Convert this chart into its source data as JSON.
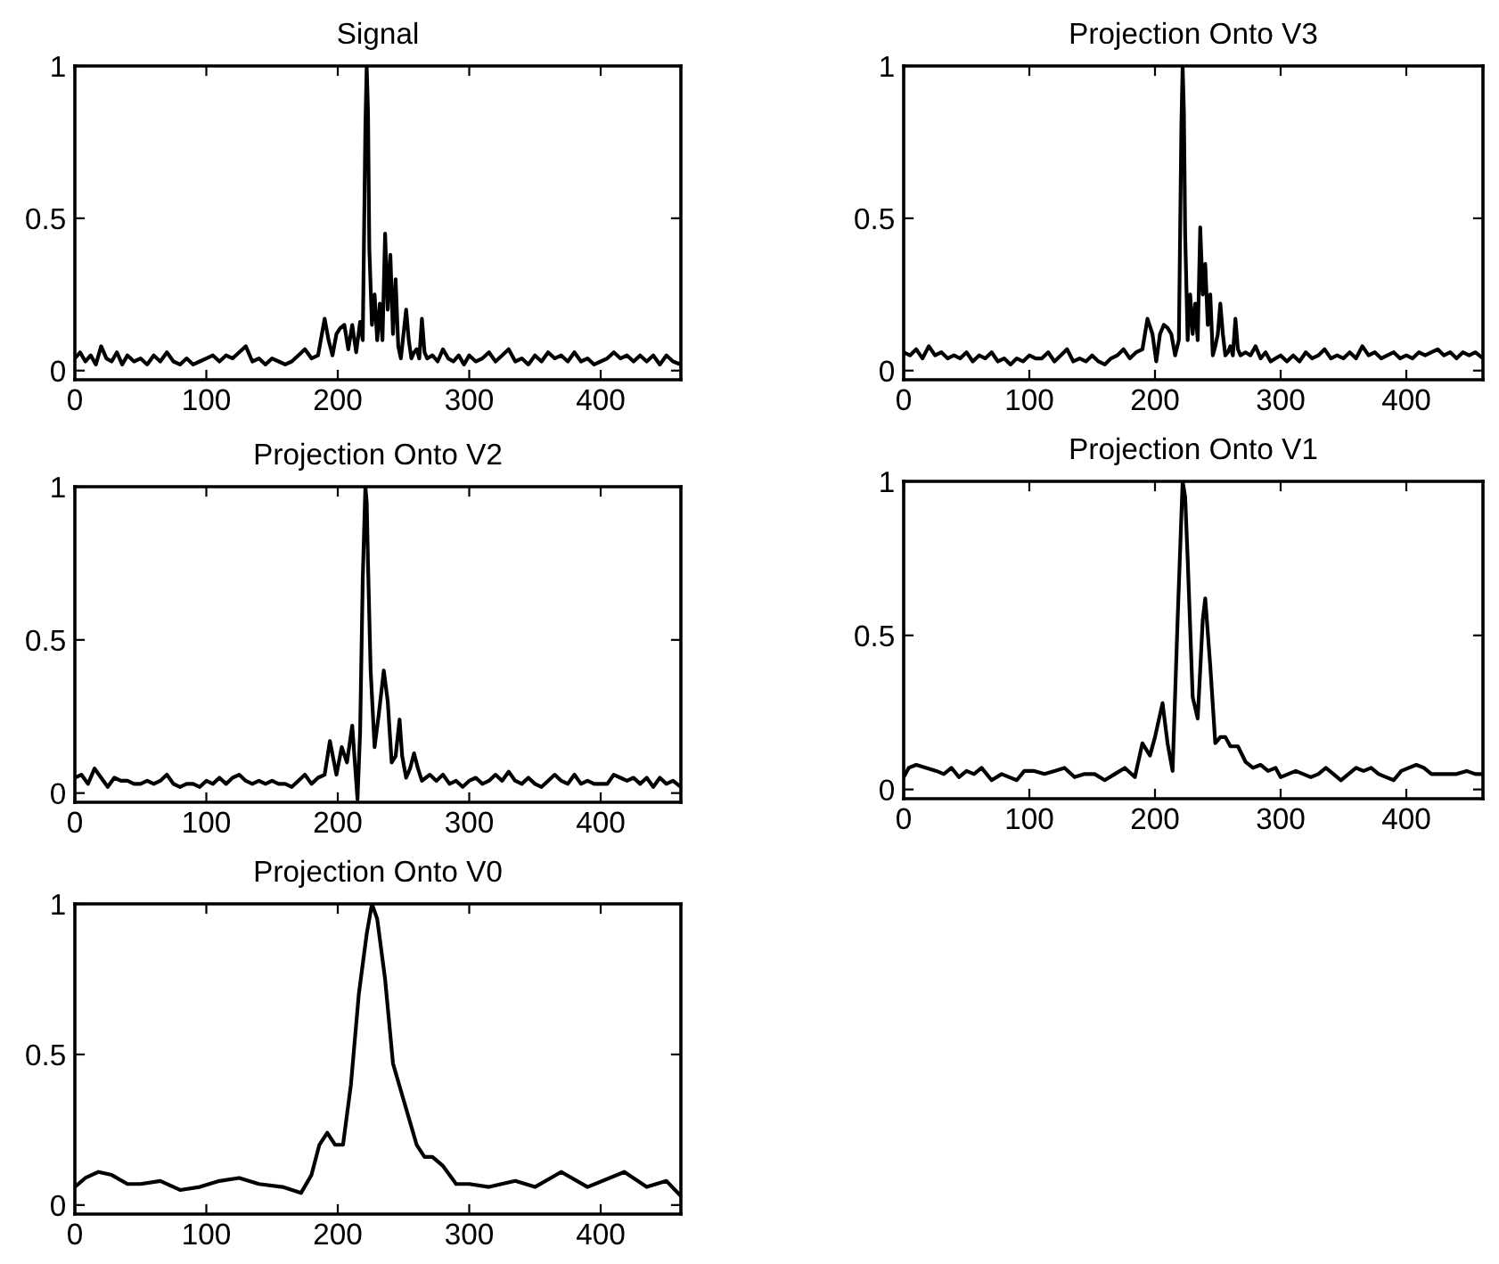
{
  "chart_data": [
    {
      "type": "line",
      "title": "Signal",
      "xlim": [
        0,
        461
      ],
      "ylim": [
        -0.03,
        1
      ],
      "xticks": [
        0,
        100,
        200,
        300,
        400
      ],
      "yticks": [
        0,
        0.5,
        1
      ],
      "color": "#000000",
      "x": [
        0,
        4,
        8,
        12,
        16,
        20,
        24,
        28,
        32,
        36,
        40,
        45,
        50,
        55,
        60,
        65,
        70,
        75,
        80,
        85,
        90,
        95,
        100,
        105,
        110,
        115,
        120,
        125,
        130,
        135,
        140,
        145,
        150,
        155,
        160,
        165,
        170,
        175,
        180,
        185,
        190,
        193,
        196,
        199,
        202,
        205,
        208,
        211,
        214,
        217,
        219,
        221,
        222,
        223,
        224,
        226,
        228,
        230,
        232,
        234,
        236,
        238,
        240,
        242,
        244,
        246,
        248,
        250,
        252,
        254,
        256,
        258,
        260,
        262,
        264,
        266,
        268,
        272,
        276,
        280,
        284,
        288,
        292,
        296,
        300,
        305,
        310,
        315,
        320,
        325,
        330,
        335,
        340,
        345,
        350,
        355,
        360,
        365,
        370,
        375,
        380,
        385,
        390,
        395,
        400,
        405,
        410,
        415,
        420,
        425,
        430,
        435,
        440,
        445,
        450,
        455,
        461
      ],
      "values": [
        0.04,
        0.06,
        0.03,
        0.05,
        0.02,
        0.08,
        0.04,
        0.03,
        0.06,
        0.02,
        0.05,
        0.03,
        0.04,
        0.02,
        0.05,
        0.03,
        0.06,
        0.03,
        0.02,
        0.04,
        0.02,
        0.03,
        0.04,
        0.05,
        0.03,
        0.05,
        0.04,
        0.06,
        0.08,
        0.03,
        0.04,
        0.02,
        0.04,
        0.03,
        0.02,
        0.03,
        0.05,
        0.07,
        0.04,
        0.05,
        0.17,
        0.1,
        0.05,
        0.12,
        0.14,
        0.15,
        0.07,
        0.15,
        0.06,
        0.16,
        0.1,
        0.8,
        1.0,
        0.85,
        0.4,
        0.15,
        0.25,
        0.1,
        0.22,
        0.1,
        0.45,
        0.2,
        0.38,
        0.12,
        0.3,
        0.08,
        0.04,
        0.12,
        0.2,
        0.1,
        0.04,
        0.06,
        0.07,
        0.04,
        0.17,
        0.06,
        0.04,
        0.05,
        0.03,
        0.07,
        0.04,
        0.03,
        0.05,
        0.02,
        0.05,
        0.03,
        0.04,
        0.06,
        0.03,
        0.05,
        0.07,
        0.03,
        0.04,
        0.02,
        0.05,
        0.03,
        0.06,
        0.04,
        0.05,
        0.03,
        0.06,
        0.03,
        0.04,
        0.02,
        0.03,
        0.04,
        0.06,
        0.04,
        0.05,
        0.03,
        0.05,
        0.03,
        0.05,
        0.02,
        0.05,
        0.03,
        0.02
      ]
    },
    {
      "type": "line",
      "title": "Projection Onto V3",
      "xlim": [
        0,
        461
      ],
      "ylim": [
        -0.03,
        1
      ],
      "xticks": [
        0,
        100,
        200,
        300,
        400
      ],
      "yticks": [
        0,
        0.5,
        1
      ],
      "color": "#000000",
      "x": [
        0,
        5,
        10,
        15,
        20,
        25,
        30,
        35,
        40,
        45,
        50,
        55,
        60,
        65,
        70,
        75,
        80,
        85,
        90,
        95,
        100,
        105,
        110,
        115,
        120,
        125,
        130,
        135,
        140,
        145,
        150,
        155,
        160,
        165,
        170,
        175,
        180,
        185,
        190,
        194,
        198,
        201,
        204,
        207,
        210,
        213,
        216,
        219,
        221,
        222,
        223,
        224,
        226,
        228,
        230,
        232,
        234,
        236,
        238,
        240,
        242,
        244,
        246,
        248,
        250,
        252,
        254,
        256,
        258,
        260,
        262,
        264,
        266,
        268,
        272,
        276,
        280,
        284,
        288,
        292,
        296,
        300,
        305,
        310,
        315,
        320,
        325,
        330,
        335,
        340,
        345,
        350,
        355,
        360,
        365,
        370,
        375,
        380,
        385,
        390,
        395,
        400,
        405,
        410,
        415,
        420,
        425,
        430,
        435,
        440,
        445,
        450,
        455,
        461
      ],
      "values": [
        0.06,
        0.05,
        0.07,
        0.04,
        0.08,
        0.05,
        0.06,
        0.04,
        0.05,
        0.04,
        0.06,
        0.03,
        0.05,
        0.04,
        0.06,
        0.03,
        0.04,
        0.02,
        0.04,
        0.03,
        0.05,
        0.04,
        0.04,
        0.06,
        0.03,
        0.05,
        0.07,
        0.03,
        0.04,
        0.03,
        0.05,
        0.03,
        0.02,
        0.04,
        0.05,
        0.07,
        0.04,
        0.06,
        0.07,
        0.17,
        0.12,
        0.03,
        0.12,
        0.15,
        0.14,
        0.12,
        0.05,
        0.1,
        0.8,
        1.0,
        0.85,
        0.45,
        0.1,
        0.25,
        0.12,
        0.22,
        0.1,
        0.47,
        0.25,
        0.35,
        0.15,
        0.25,
        0.05,
        0.08,
        0.12,
        0.22,
        0.12,
        0.05,
        0.06,
        0.08,
        0.05,
        0.17,
        0.07,
        0.05,
        0.06,
        0.05,
        0.08,
        0.04,
        0.06,
        0.03,
        0.04,
        0.05,
        0.03,
        0.05,
        0.03,
        0.06,
        0.04,
        0.05,
        0.07,
        0.04,
        0.05,
        0.04,
        0.06,
        0.04,
        0.08,
        0.05,
        0.06,
        0.04,
        0.05,
        0.06,
        0.04,
        0.05,
        0.04,
        0.06,
        0.05,
        0.06,
        0.07,
        0.05,
        0.06,
        0.04,
        0.06,
        0.05,
        0.06,
        0.04
      ]
    },
    {
      "type": "line",
      "title": "Projection Onto V2",
      "xlim": [
        0,
        461
      ],
      "ylim": [
        -0.03,
        1
      ],
      "xticks": [
        0,
        100,
        200,
        300,
        400
      ],
      "yticks": [
        0,
        0.5,
        1
      ],
      "color": "#000000",
      "x": [
        0,
        5,
        10,
        15,
        20,
        25,
        30,
        35,
        40,
        45,
        50,
        55,
        60,
        65,
        70,
        75,
        80,
        85,
        90,
        95,
        100,
        105,
        110,
        115,
        120,
        125,
        130,
        135,
        140,
        145,
        150,
        155,
        160,
        165,
        170,
        175,
        180,
        185,
        190,
        194,
        199,
        203,
        207,
        211,
        215,
        217,
        219,
        221,
        222,
        223,
        225,
        228,
        231,
        235,
        238,
        241,
        244,
        247,
        249,
        252,
        255,
        258,
        261,
        264,
        267,
        270,
        275,
        280,
        285,
        290,
        295,
        300,
        305,
        310,
        315,
        320,
        325,
        330,
        335,
        340,
        345,
        350,
        355,
        360,
        365,
        370,
        375,
        380,
        385,
        390,
        395,
        400,
        405,
        410,
        415,
        420,
        425,
        430,
        435,
        440,
        445,
        450,
        455,
        461
      ],
      "values": [
        0.05,
        0.06,
        0.03,
        0.08,
        0.05,
        0.02,
        0.05,
        0.04,
        0.04,
        0.03,
        0.03,
        0.04,
        0.03,
        0.04,
        0.06,
        0.03,
        0.02,
        0.03,
        0.03,
        0.02,
        0.04,
        0.03,
        0.05,
        0.03,
        0.05,
        0.06,
        0.04,
        0.03,
        0.04,
        0.03,
        0.04,
        0.03,
        0.03,
        0.02,
        0.04,
        0.06,
        0.03,
        0.05,
        0.06,
        0.17,
        0.06,
        0.15,
        0.1,
        0.22,
        -0.02,
        0.2,
        0.7,
        1.0,
        0.95,
        0.75,
        0.4,
        0.15,
        0.25,
        0.4,
        0.3,
        0.1,
        0.12,
        0.24,
        0.12,
        0.05,
        0.08,
        0.13,
        0.08,
        0.04,
        0.05,
        0.06,
        0.04,
        0.06,
        0.03,
        0.04,
        0.02,
        0.04,
        0.05,
        0.03,
        0.04,
        0.06,
        0.04,
        0.07,
        0.04,
        0.03,
        0.05,
        0.03,
        0.02,
        0.04,
        0.06,
        0.04,
        0.03,
        0.06,
        0.03,
        0.04,
        0.03,
        0.03,
        0.03,
        0.06,
        0.05,
        0.04,
        0.05,
        0.03,
        0.05,
        0.02,
        0.05,
        0.03,
        0.04,
        0.02
      ]
    },
    {
      "type": "line",
      "title": "Projection Onto V1",
      "xlim": [
        0,
        461
      ],
      "ylim": [
        -0.03,
        1
      ],
      "xticks": [
        0,
        100,
        200,
        300,
        400
      ],
      "yticks": [
        0,
        0.5,
        1
      ],
      "color": "#000000",
      "x": [
        0,
        4,
        10,
        18,
        26,
        32,
        38,
        44,
        50,
        56,
        62,
        70,
        78,
        84,
        90,
        96,
        104,
        112,
        120,
        128,
        136,
        144,
        152,
        160,
        168,
        176,
        184,
        190,
        196,
        200,
        206,
        210,
        214,
        218,
        222,
        224,
        226,
        230,
        234,
        238,
        240,
        244,
        248,
        252,
        256,
        260,
        266,
        272,
        278,
        284,
        290,
        296,
        300,
        306,
        312,
        318,
        324,
        330,
        336,
        342,
        348,
        354,
        360,
        366,
        372,
        378,
        384,
        390,
        396,
        402,
        408,
        414,
        420,
        426,
        432,
        440,
        448,
        455,
        461
      ],
      "values": [
        0.04,
        0.07,
        0.08,
        0.07,
        0.06,
        0.05,
        0.07,
        0.04,
        0.06,
        0.05,
        0.07,
        0.03,
        0.05,
        0.04,
        0.03,
        0.06,
        0.06,
        0.05,
        0.06,
        0.07,
        0.04,
        0.05,
        0.05,
        0.03,
        0.05,
        0.07,
        0.04,
        0.15,
        0.11,
        0.17,
        0.28,
        0.15,
        0.06,
        0.55,
        1.0,
        0.95,
        0.75,
        0.3,
        0.23,
        0.55,
        0.62,
        0.4,
        0.15,
        0.17,
        0.17,
        0.14,
        0.14,
        0.09,
        0.07,
        0.08,
        0.06,
        0.07,
        0.04,
        0.05,
        0.06,
        0.05,
        0.04,
        0.05,
        0.07,
        0.05,
        0.03,
        0.05,
        0.07,
        0.06,
        0.07,
        0.05,
        0.04,
        0.03,
        0.06,
        0.07,
        0.08,
        0.07,
        0.05,
        0.05,
        0.05,
        0.05,
        0.06,
        0.05,
        0.05
      ]
    },
    {
      "type": "line",
      "title": "Projection Onto V0",
      "xlim": [
        0,
        461
      ],
      "ylim": [
        -0.03,
        1
      ],
      "xticks": [
        0,
        100,
        200,
        300,
        400
      ],
      "yticks": [
        0,
        0.5,
        1
      ],
      "color": "#000000",
      "x": [
        0,
        8,
        18,
        28,
        40,
        50,
        65,
        80,
        95,
        110,
        125,
        140,
        158,
        172,
        180,
        186,
        192,
        198,
        204,
        210,
        216,
        222,
        226,
        230,
        236,
        242,
        248,
        254,
        260,
        266,
        272,
        280,
        290,
        300,
        315,
        335,
        350,
        370,
        390,
        418,
        435,
        450,
        461
      ],
      "values": [
        0.06,
        0.09,
        0.11,
        0.1,
        0.07,
        0.07,
        0.08,
        0.05,
        0.06,
        0.08,
        0.09,
        0.07,
        0.06,
        0.04,
        0.1,
        0.2,
        0.24,
        0.2,
        0.2,
        0.4,
        0.7,
        0.9,
        1.0,
        0.95,
        0.75,
        0.47,
        0.38,
        0.29,
        0.2,
        0.16,
        0.16,
        0.13,
        0.07,
        0.07,
        0.06,
        0.08,
        0.06,
        0.11,
        0.06,
        0.11,
        0.06,
        0.08,
        0.03
      ]
    }
  ]
}
